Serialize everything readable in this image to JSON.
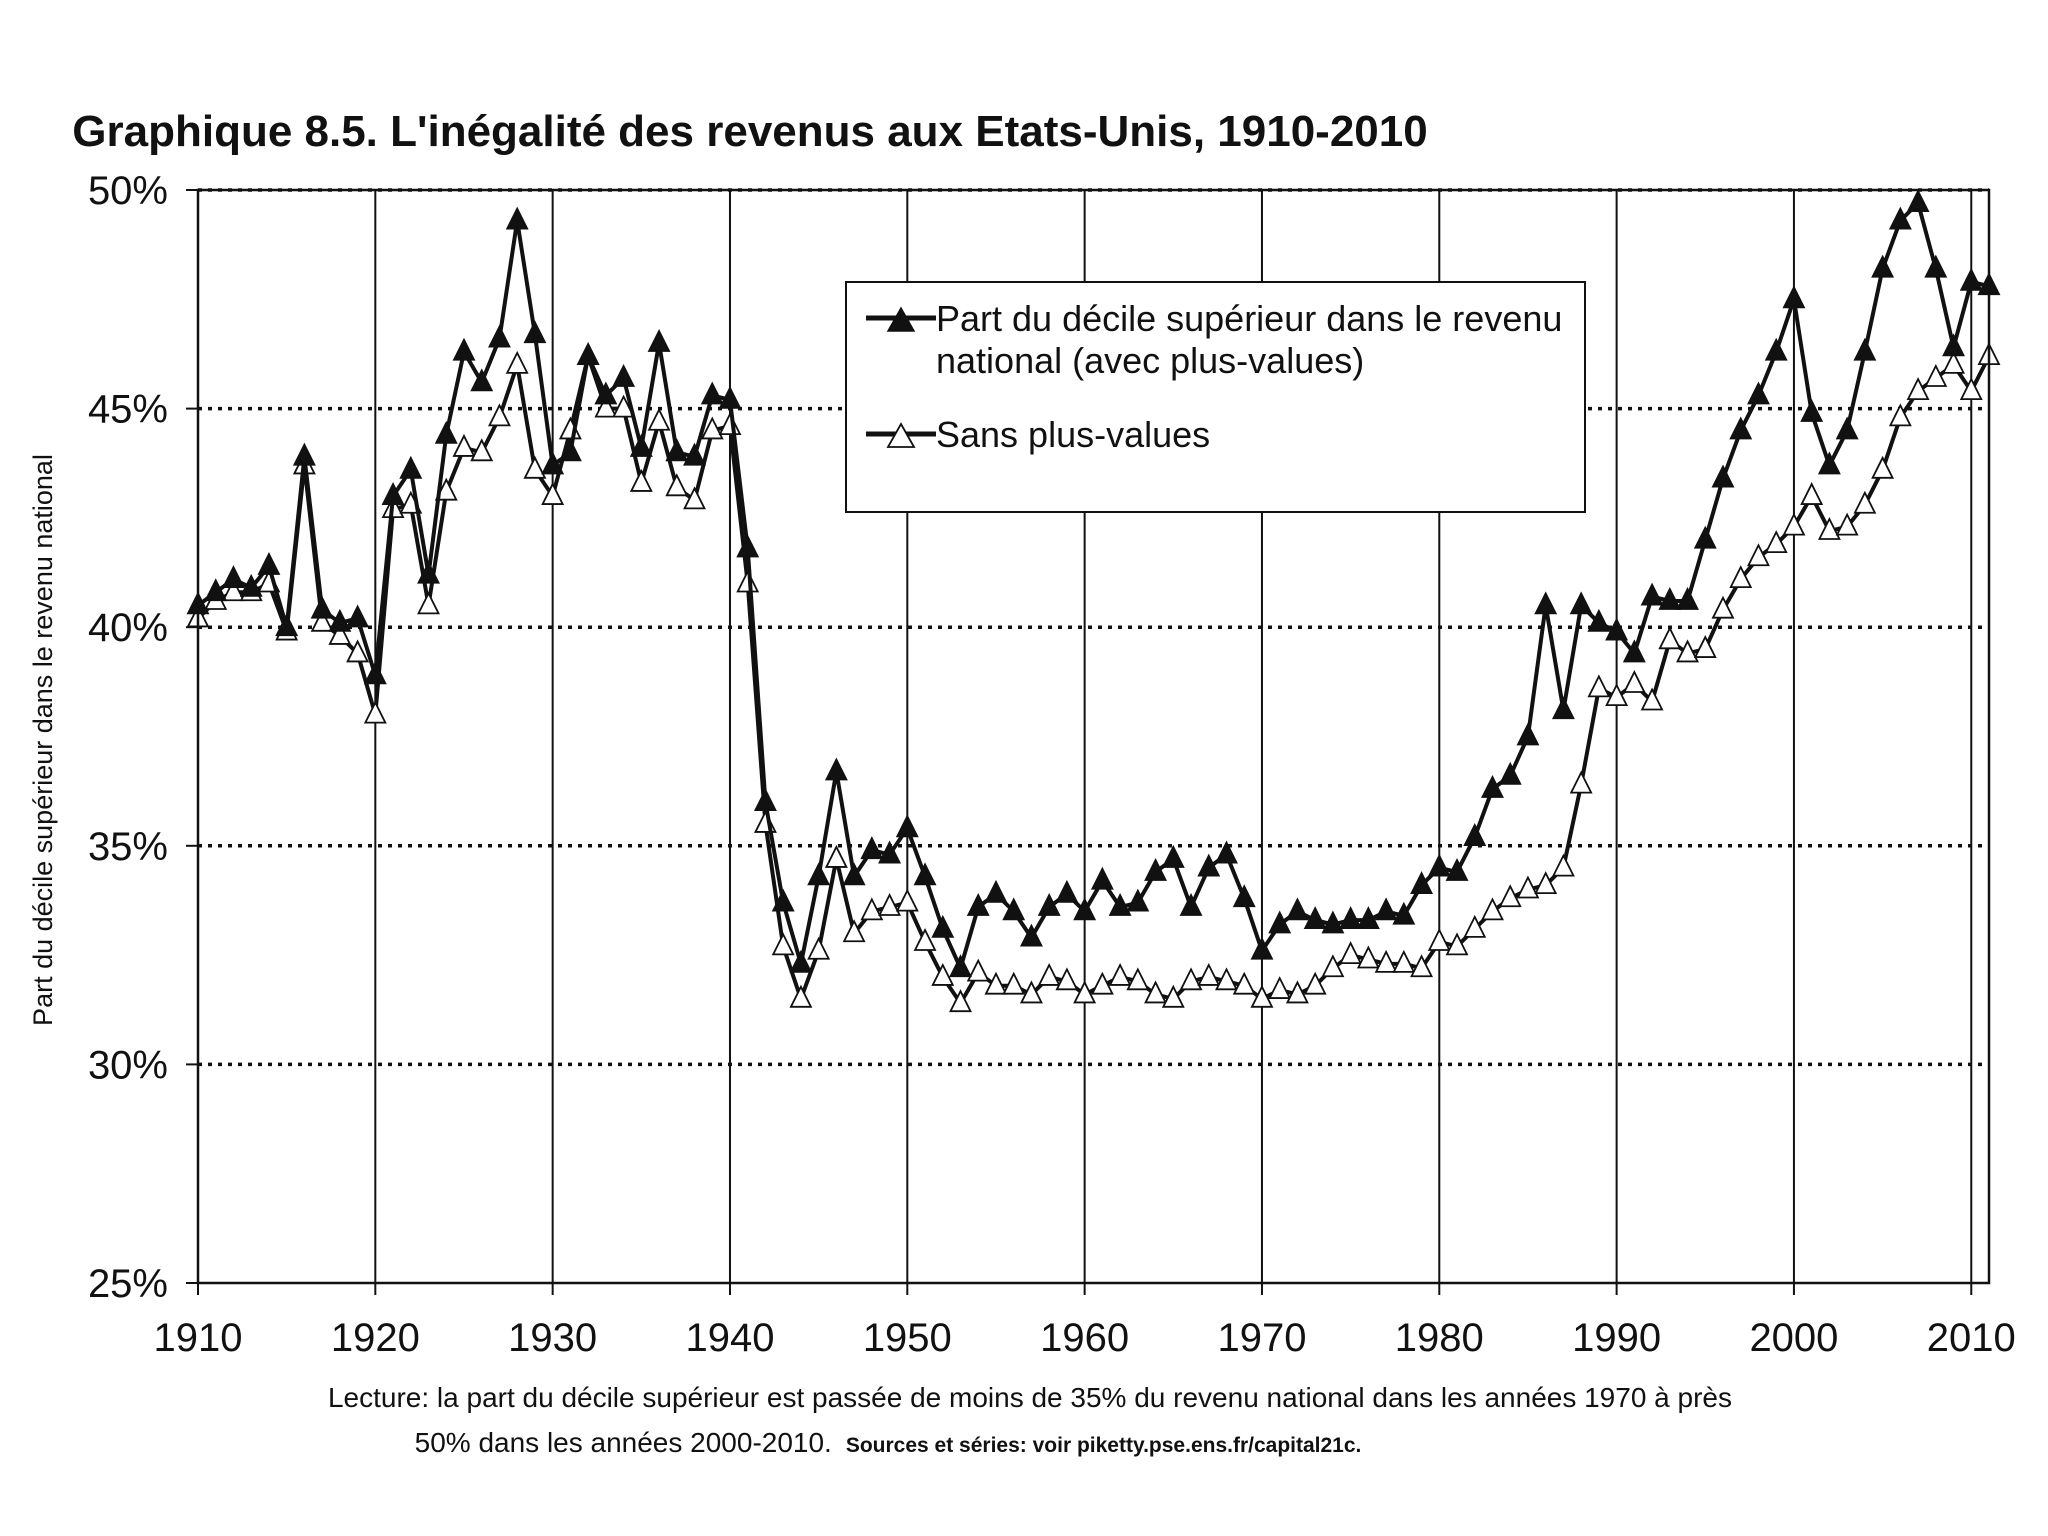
{
  "chart_data": {
    "type": "line",
    "title": "Graphique 8.5. L'inégalité des revenus aux Etats-Unis, 1910-2010",
    "xlabel": "",
    "ylabel": "Part du décile supérieur dans le revenu national",
    "xlim": [
      1910,
      2011
    ],
    "ylim": [
      25,
      50
    ],
    "xticks": [
      1910,
      1920,
      1930,
      1940,
      1950,
      1960,
      1970,
      1980,
      1990,
      2000,
      2010
    ],
    "xtick_labels": [
      "1910",
      "1920",
      "1930",
      "1940",
      "1950",
      "1960",
      "1970",
      "1980",
      "1990",
      "2000",
      "2010"
    ],
    "yticks": [
      25,
      30,
      35,
      40,
      45,
      50
    ],
    "ytick_labels": [
      "25%",
      "30%",
      "35%",
      "40%",
      "45%",
      "50%"
    ],
    "grid": "horizontal dotted, vertical solid",
    "legend_position": "top-center",
    "x": [
      1910,
      1911,
      1912,
      1913,
      1914,
      1915,
      1916,
      1917,
      1918,
      1919,
      1920,
      1921,
      1922,
      1923,
      1924,
      1925,
      1926,
      1927,
      1928,
      1929,
      1930,
      1931,
      1932,
      1933,
      1934,
      1935,
      1936,
      1937,
      1938,
      1939,
      1940,
      1941,
      1942,
      1943,
      1944,
      1945,
      1946,
      1947,
      1948,
      1949,
      1950,
      1951,
      1952,
      1953,
      1954,
      1955,
      1956,
      1957,
      1958,
      1959,
      1960,
      1961,
      1962,
      1963,
      1964,
      1965,
      1966,
      1967,
      1968,
      1969,
      1970,
      1971,
      1972,
      1973,
      1974,
      1975,
      1976,
      1977,
      1978,
      1979,
      1980,
      1981,
      1982,
      1983,
      1984,
      1985,
      1986,
      1987,
      1988,
      1989,
      1990,
      1991,
      1992,
      1993,
      1994,
      1995,
      1996,
      1997,
      1998,
      1999,
      2000,
      2001,
      2002,
      2003,
      2004,
      2005,
      2006,
      2007,
      2008,
      2009,
      2010,
      2011
    ],
    "series": [
      {
        "name": "Part du décile supérieur dans le revenu national (avec plus-values)",
        "marker": "filled-triangle",
        "values": [
          40.5,
          40.8,
          41.1,
          40.9,
          41.4,
          40.0,
          43.9,
          40.4,
          40.1,
          40.2,
          38.9,
          43.0,
          43.6,
          41.2,
          44.4,
          46.3,
          45.6,
          46.6,
          49.3,
          46.7,
          43.7,
          44.0,
          46.2,
          45.3,
          45.7,
          44.1,
          46.5,
          44.0,
          43.9,
          45.3,
          45.2,
          41.8,
          36.0,
          33.7,
          32.3,
          34.3,
          36.7,
          34.3,
          34.9,
          34.8,
          35.4,
          34.3,
          33.1,
          32.2,
          33.6,
          33.9,
          33.5,
          32.9,
          33.6,
          33.9,
          33.5,
          34.2,
          33.6,
          33.7,
          34.4,
          34.7,
          33.6,
          34.5,
          34.8,
          33.8,
          32.6,
          33.2,
          33.5,
          33.3,
          33.2,
          33.3,
          33.3,
          33.5,
          33.4,
          34.1,
          34.5,
          34.4,
          35.2,
          36.3,
          36.6,
          37.5,
          40.5,
          38.1,
          40.5,
          40.1,
          39.9,
          39.4,
          40.7,
          40.6,
          40.6,
          42.0,
          43.4,
          44.5,
          45.3,
          46.3,
          47.5,
          44.9,
          43.7,
          44.5,
          46.3,
          48.2,
          49.3,
          49.7,
          48.2,
          46.4,
          47.9,
          47.8
        ]
      },
      {
        "name": "Sans plus-values",
        "marker": "open-triangle",
        "values": [
          40.2,
          40.6,
          40.8,
          40.8,
          41.0,
          39.9,
          43.7,
          40.1,
          39.8,
          39.4,
          38.0,
          42.7,
          42.8,
          40.5,
          43.1,
          44.1,
          44.0,
          44.8,
          46.0,
          43.6,
          43.0,
          44.5,
          46.2,
          45.0,
          45.0,
          43.3,
          44.7,
          43.2,
          42.9,
          44.5,
          44.6,
          41.0,
          35.5,
          32.7,
          31.5,
          32.6,
          34.7,
          33.0,
          33.5,
          33.6,
          33.7,
          32.8,
          32.0,
          31.4,
          32.1,
          31.8,
          31.8,
          31.6,
          32.0,
          31.9,
          31.6,
          31.8,
          32.0,
          31.9,
          31.6,
          31.5,
          31.9,
          32.0,
          31.9,
          31.8,
          31.5,
          31.7,
          31.6,
          31.8,
          32.2,
          32.5,
          32.4,
          32.3,
          32.3,
          32.2,
          32.8,
          32.7,
          33.1,
          33.5,
          33.8,
          34.0,
          34.1,
          34.5,
          36.4,
          38.6,
          38.4,
          38.7,
          38.3,
          39.7,
          39.4,
          39.5,
          40.4,
          41.1,
          41.6,
          41.9,
          42.3,
          43.0,
          42.2,
          42.3,
          42.8,
          43.6,
          44.8,
          45.4,
          45.7,
          46.0,
          45.4,
          46.2
        ]
      }
    ],
    "annotations": {
      "lecture_line1": "Lecture: la part du décile supérieur est passée de moins de 35% du revenu national dans les années 1970 à près",
      "lecture_line2": "50% dans les années 2000-2010.",
      "sources": "Sources et séries: voir piketty.pse.ens.fr/capital21c."
    }
  }
}
